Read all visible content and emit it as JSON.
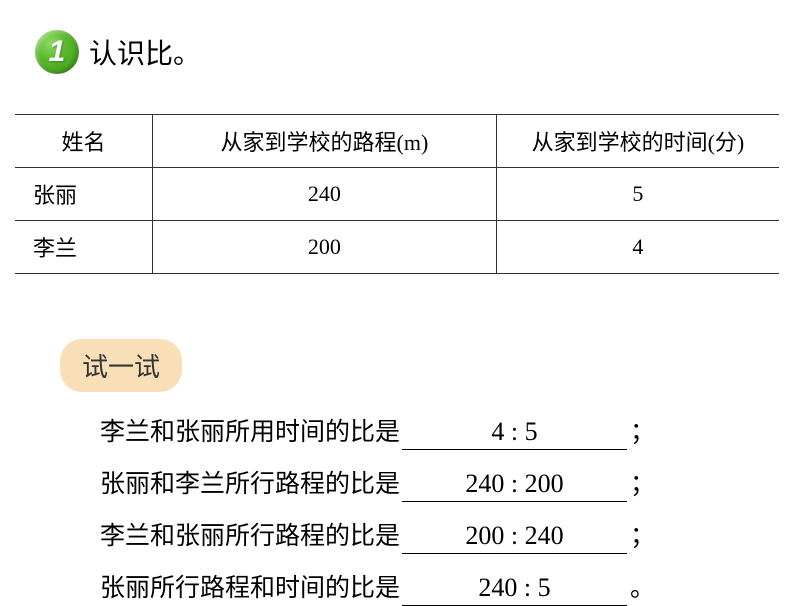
{
  "header": {
    "badge_number": "1",
    "title": "认识比。"
  },
  "table": {
    "columns": [
      "姓名",
      "从家到学校的路程(m)",
      "从家到学校的时间(分)"
    ],
    "rows": [
      {
        "name": "张丽",
        "distance": "240",
        "time": "5"
      },
      {
        "name": "李兰",
        "distance": "200",
        "time": "4"
      }
    ]
  },
  "try_section": {
    "label": "试一试",
    "questions": [
      {
        "text": "李兰和张丽所用时间的比是",
        "answer": "4 : 5",
        "punct": "；"
      },
      {
        "text": "张丽和李兰所行路程的比是",
        "answer": "240 : 200",
        "punct": "；"
      },
      {
        "text": "李兰和张丽所行路程的比是",
        "answer": "200 : 240",
        "punct": "；"
      },
      {
        "text": "张丽所行路程和时间的比是",
        "answer": "240 : 5",
        "punct": "。"
      }
    ]
  },
  "styling": {
    "page_bg": "#ffffff",
    "badge_gradient_start": "#8fd960",
    "badge_gradient_mid": "#5ab82d",
    "badge_gradient_end": "#3a9218",
    "try_label_bg": "#f8dfb8",
    "border_color": "#333333",
    "text_color": "#000000",
    "title_fontsize": 28,
    "table_fontsize": 22,
    "question_fontsize": 25,
    "answer_fontsize": 26
  }
}
